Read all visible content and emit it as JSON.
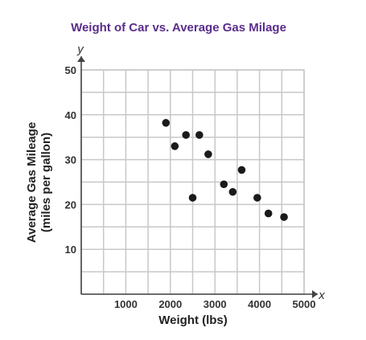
{
  "chart_data": {
    "type": "scatter",
    "title": "Weight of Car vs. Average Gas Milage",
    "xlabel": "Weight (lbs)",
    "ylabel_line1": "Average Gas Mileage",
    "ylabel_line2": "(miles per gallon)",
    "x_axis_letter": "x",
    "y_axis_letter": "y",
    "xlim": [
      0,
      5000
    ],
    "ylim": [
      0,
      50
    ],
    "xticks": [
      1000,
      2000,
      3000,
      4000,
      5000
    ],
    "yticks": [
      10,
      20,
      30,
      40,
      50
    ],
    "grid": true,
    "points": [
      {
        "x": 1900,
        "y": 38.2
      },
      {
        "x": 2100,
        "y": 33
      },
      {
        "x": 2350,
        "y": 35.5
      },
      {
        "x": 2500,
        "y": 21.5
      },
      {
        "x": 2650,
        "y": 35.5
      },
      {
        "x": 2850,
        "y": 31.2
      },
      {
        "x": 3200,
        "y": 24.5
      },
      {
        "x": 3400,
        "y": 22.8
      },
      {
        "x": 3600,
        "y": 27.7
      },
      {
        "x": 3950,
        "y": 21.5
      },
      {
        "x": 4200,
        "y": 18
      },
      {
        "x": 4550,
        "y": 17.2
      }
    ],
    "colors": {
      "title": "#5b2d8c",
      "grid": "#c8c8c8",
      "point": "#1a1a1a"
    }
  }
}
